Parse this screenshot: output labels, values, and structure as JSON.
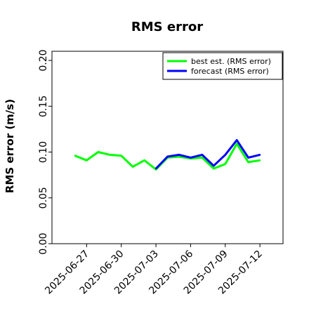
{
  "chart_data": {
    "type": "line",
    "title": "RMS error",
    "xlabel": "",
    "ylabel": "RMS error (m/s)",
    "ylim": [
      0.0,
      0.21
    ],
    "yticks": [
      "0.00",
      "0.05",
      "0.10",
      "0.15",
      "0.20"
    ],
    "ytick_values": [
      0.0,
      0.05,
      0.1,
      0.15,
      0.2
    ],
    "xlim": [
      "2025-06-24",
      "2025-07-14"
    ],
    "xticks": [
      "2025-06-27",
      "2025-06-30",
      "2025-07-03",
      "2025-07-06",
      "2025-07-09",
      "2025-07-12"
    ],
    "highlighted_xtick": "2025-07-03",
    "highlight_color": "#228B22",
    "grid": false,
    "legend_position": "top-right",
    "series": [
      {
        "name": "best est. (RMS error)",
        "color": "#00ff00",
        "x": [
          "2025-06-26",
          "2025-06-27",
          "2025-06-28",
          "2025-06-29",
          "2025-06-30",
          "2025-07-01",
          "2025-07-02",
          "2025-07-03",
          "2025-07-04",
          "2025-07-05",
          "2025-07-06",
          "2025-07-07",
          "2025-07-08",
          "2025-07-09",
          "2025-07-10",
          "2025-07-11",
          "2025-07-12"
        ],
        "values": [
          0.096,
          0.091,
          0.1,
          0.097,
          0.096,
          0.084,
          0.091,
          0.081,
          0.094,
          0.095,
          0.093,
          0.094,
          0.082,
          0.087,
          0.109,
          0.089,
          0.091
        ]
      },
      {
        "name": "forecast (RMS error)",
        "color": "#0000ff",
        "x": [
          "2025-07-03",
          "2025-07-04",
          "2025-07-05",
          "2025-07-06",
          "2025-07-07",
          "2025-07-08",
          "2025-07-09",
          "2025-07-10",
          "2025-07-11",
          "2025-07-12"
        ],
        "values": [
          0.082,
          0.095,
          0.097,
          0.094,
          0.097,
          0.085,
          0.097,
          0.113,
          0.094,
          0.097
        ]
      }
    ]
  }
}
